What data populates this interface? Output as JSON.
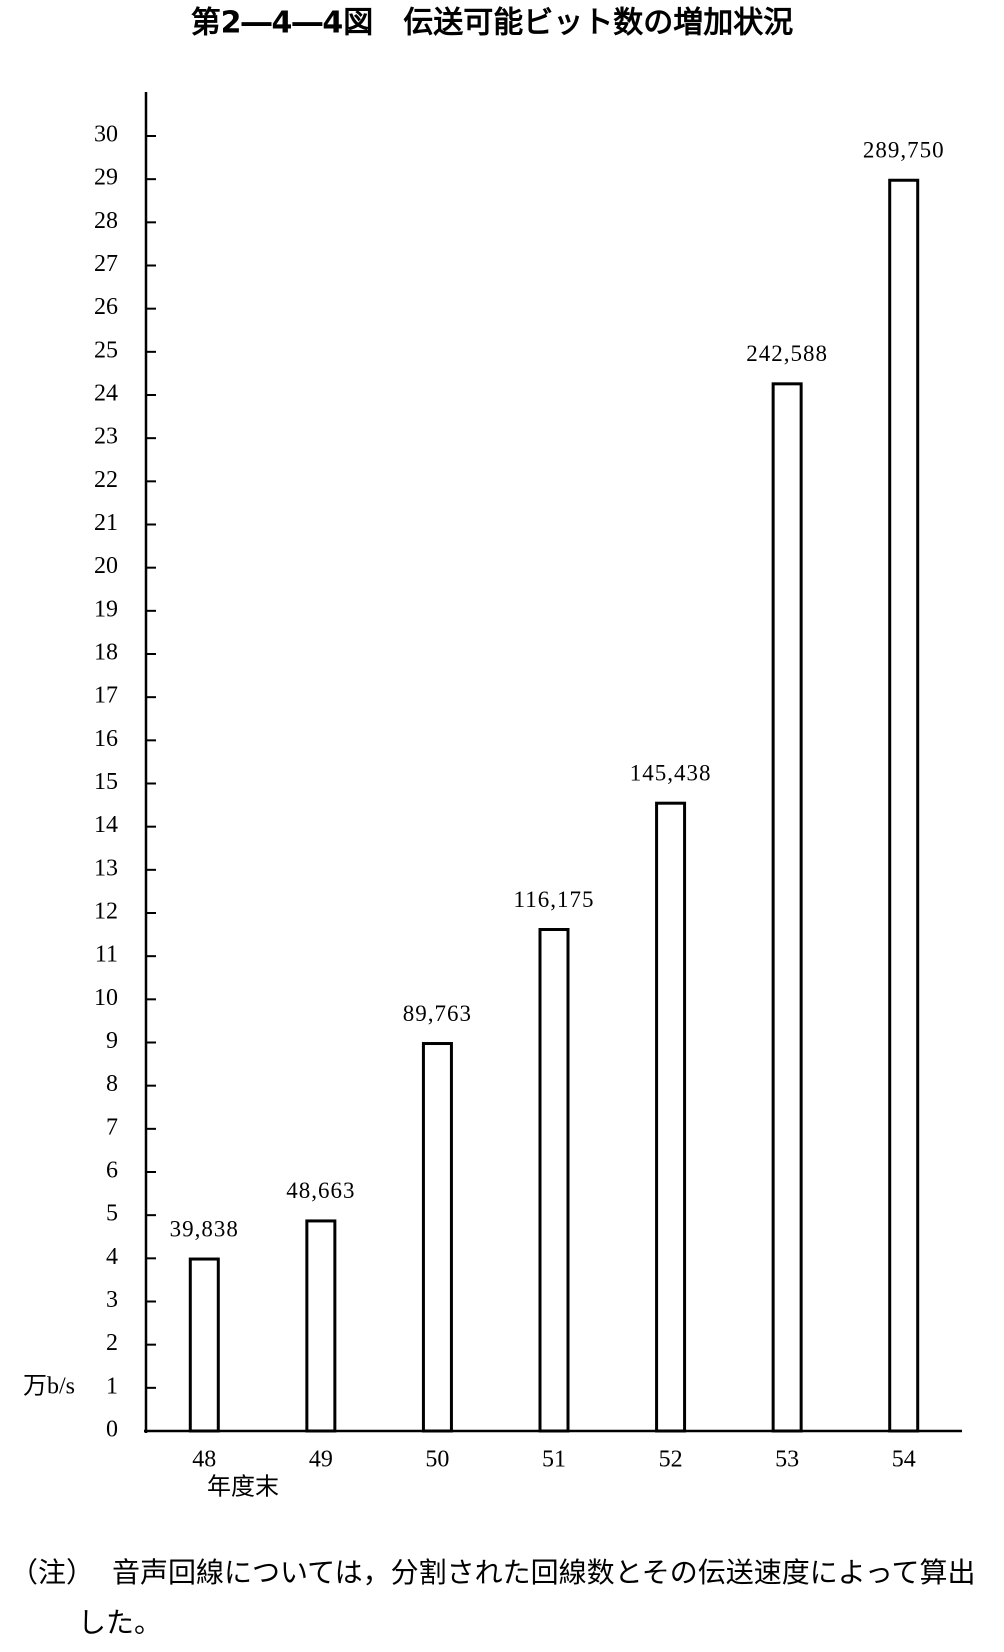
{
  "chart_data": {
    "type": "bar",
    "title": "第2―4―4図　伝送可能ビット数の増加状況",
    "categories": [
      "48",
      "49",
      "50",
      "51",
      "52",
      "53",
      "54"
    ],
    "x_label": "年度末",
    "y_label": "万b/s",
    "values": [
      3.9838,
      4.8663,
      8.9763,
      11.6175,
      14.5438,
      24.2588,
      28.975
    ],
    "value_labels": [
      "39,838",
      "48,663",
      "89,763",
      "116,175",
      "145,438",
      "242,588",
      "289,750"
    ],
    "color": "#ffffff",
    "edge_color": "#000000",
    "ylim": [
      0,
      30
    ],
    "yticks": [
      0,
      1,
      2,
      3,
      4,
      5,
      6,
      7,
      8,
      9,
      10,
      11,
      12,
      13,
      14,
      15,
      16,
      17,
      18,
      19,
      20,
      21,
      22,
      23,
      24,
      25,
      26,
      27,
      28,
      29,
      30
    ],
    "grid": false
  },
  "note_label": "（注）",
  "note": "音声回線については，分割された回線数とその伝送速度によって算出した。"
}
